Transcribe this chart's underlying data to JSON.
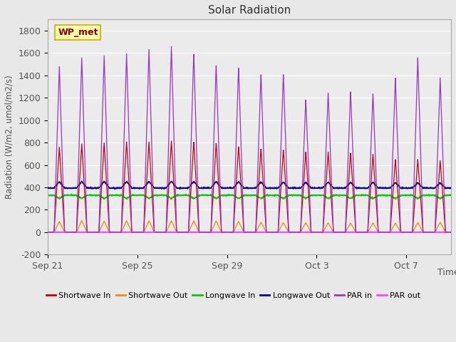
{
  "title": "Solar Radiation",
  "ylabel": "Radiation (W/m2, umol/m2/s)",
  "xlabel": "Time",
  "ylim": [
    -200,
    1900
  ],
  "yticks": [
    -200,
    0,
    200,
    400,
    600,
    800,
    1000,
    1200,
    1400,
    1600,
    1800
  ],
  "date_labels": [
    "Sep 21",
    "Sep 25",
    "Sep 29",
    "Oct 3",
    "Oct 7"
  ],
  "tick_day_positions": [
    0,
    4,
    8,
    12,
    16
  ],
  "station_label": "WP_met",
  "fig_bg_color": "#e8e8e8",
  "plot_bg_color": "#ebebeb",
  "series": {
    "shortwave_in": {
      "color": "#cc0000",
      "label": "Shortwave In"
    },
    "shortwave_out": {
      "color": "#ff8800",
      "label": "Shortwave Out"
    },
    "longwave_in": {
      "color": "#00cc00",
      "label": "Longwave In"
    },
    "longwave_out": {
      "color": "#0000bb",
      "label": "Longwave Out"
    },
    "par_in": {
      "color": "#9933cc",
      "label": "PAR in"
    },
    "par_out": {
      "color": "#ff44ff",
      "label": "PAR out"
    }
  },
  "n_days": 18,
  "shortwave_in_peaks": [
    760,
    790,
    800,
    810,
    810,
    820,
    810,
    800,
    770,
    750,
    740,
    720,
    720,
    710,
    700,
    650,
    650,
    640
  ],
  "shortwave_out_peaks": [
    95,
    105,
    100,
    103,
    103,
    103,
    103,
    100,
    96,
    90,
    86,
    86,
    84,
    82,
    84,
    82,
    86,
    90
  ],
  "par_in_peaks": [
    1480,
    1560,
    1580,
    1600,
    1640,
    1670,
    1600,
    1500,
    1480,
    1420,
    1420,
    1190,
    1250,
    1260,
    1240,
    1380,
    1560,
    1380
  ],
  "longwave_in_base": 330,
  "longwave_out_base": 395,
  "n_pts_per_day": 200
}
